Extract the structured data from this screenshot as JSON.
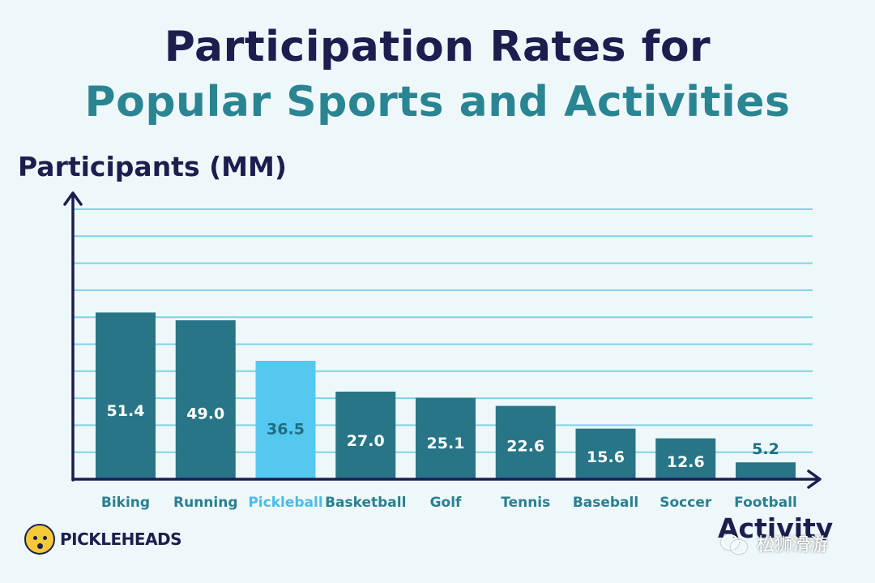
{
  "header": {
    "title_line1": "Participation Rates for",
    "title_line2": "Popular Sports and Activities"
  },
  "colors": {
    "bar_default": "#277587",
    "bar_highlight": "#55c8f0",
    "highlight_label": "#47bdea",
    "axis": "#1b1f4e",
    "grid": "#7ed3e6",
    "value_text_default": "#ffffff",
    "value_text_highlight": "#1f6e80",
    "category_text": "#2a7f90",
    "background": "#eef8fb"
  },
  "chart_data": {
    "type": "bar",
    "title": "Participation Rates for Popular Sports and Activities",
    "ylabel": "Participants (MM)",
    "xlabel": "Activity",
    "categories": [
      "Biking",
      "Running",
      "Pickleball",
      "Basketball",
      "Golf",
      "Tennis",
      "Baseball",
      "Soccer",
      "Football"
    ],
    "values": [
      51.4,
      49.0,
      36.5,
      27.0,
      25.1,
      22.6,
      15.6,
      12.6,
      5.2
    ],
    "value_labels": [
      "51.4",
      "49.0",
      "36.5",
      "27.0",
      "25.1",
      "22.6",
      "15.6",
      "12.6",
      "5.2"
    ],
    "highlight_category": "Pickleball",
    "ylim": [
      0,
      100
    ],
    "grid": true,
    "legend": "none"
  },
  "branding": {
    "logo_text": "PICKLEHEADS",
    "watermark_text": "松狮滑游",
    "logo_icon": "pickleball-face-icon",
    "watermark_icon": "wechat-icon"
  }
}
